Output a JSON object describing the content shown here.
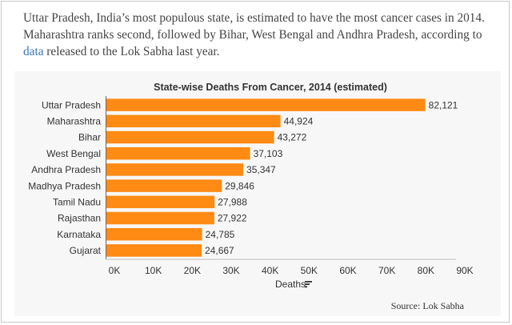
{
  "article": {
    "text_before_link": "Uttar Pradesh, India’s most populous state, is estimated to have the most cancer cases in 2014. Maharashtra ranks second, followed by Bihar, West Bengal and Andhra Pradesh, according to ",
    "link_text": "data",
    "text_after_link": " released to the Lok Sabha last year."
  },
  "source": "Source: Lok Sabha",
  "colors": {
    "bar": "#ff8a14",
    "axis": "#666666",
    "text": "#333333",
    "panel": "#f7f7f7",
    "link": "#3573b9"
  },
  "chart_data": {
    "type": "bar",
    "orientation": "horizontal",
    "title": "State-wise Deaths From Cancer, 2014 (estimated)",
    "xlabel": "Deaths",
    "xlabel_icon": "sort-icon",
    "categories": [
      "Uttar Pradesh",
      "Maharashtra",
      "Bihar",
      "West Bengal",
      "Andhra Pradesh",
      "Madhya Pradesh",
      "Tamil Nadu",
      "Rajasthan",
      "Karnataka",
      "Gujarat"
    ],
    "values": [
      82121,
      44924,
      43272,
      37103,
      35347,
      29846,
      27988,
      27922,
      24785,
      24667
    ],
    "value_labels": [
      "82,121",
      "44,924",
      "43,272",
      "37,103",
      "35,347",
      "29,846",
      "27,988",
      "27,922",
      "24,785",
      "24,667"
    ],
    "xlim": [
      0,
      90000
    ],
    "xticks": [
      0,
      10000,
      20000,
      30000,
      40000,
      50000,
      60000,
      70000,
      80000,
      90000
    ],
    "xtick_labels": [
      "0K",
      "10K",
      "20K",
      "30K",
      "40K",
      "50K",
      "60K",
      "70K",
      "80K",
      "90K"
    ],
    "grid": false
  }
}
